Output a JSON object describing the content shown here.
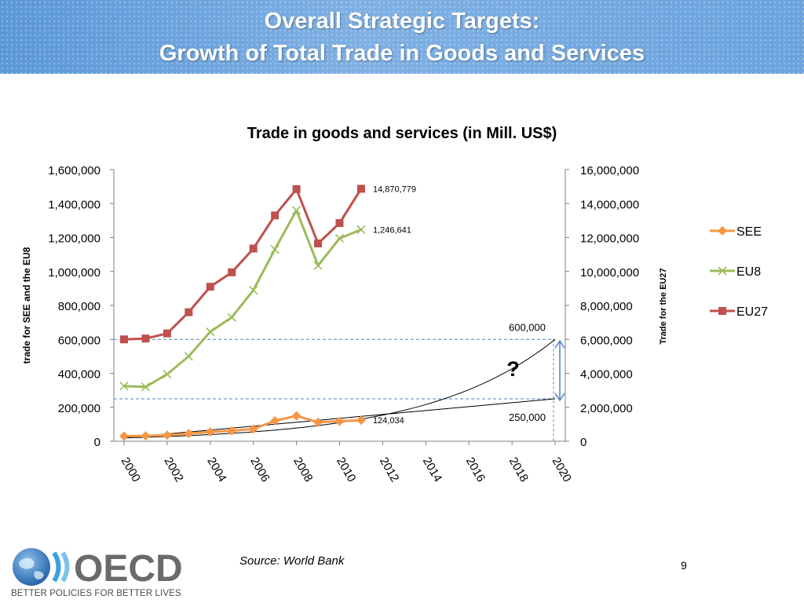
{
  "header": {
    "title_line1": "Overall Strategic Targets:",
    "title_line2": "Growth of Total Trade in Goods and Services"
  },
  "chart_data": {
    "type": "line",
    "title": "Trade in goods and services (in Mill. US$)",
    "ylabel_left": "trade for SEE and the EU8",
    "ylabel_right": "Trade for the EU27",
    "x_ticks": [
      "2000",
      "2002",
      "2004",
      "2006",
      "2008",
      "2010",
      "2012",
      "2014",
      "2016",
      "2018",
      "2020"
    ],
    "xlim": [
      2000,
      2020
    ],
    "ylim_left": [
      0,
      1600000
    ],
    "ylim_right": [
      0,
      16000000
    ],
    "y_ticks_left": [
      "0",
      "200,000",
      "400,000",
      "600,000",
      "800,000",
      "1,000,000",
      "1,200,000",
      "1,400,000",
      "1,600,000"
    ],
    "y_ticks_right": [
      "0",
      "2,000,000",
      "4,000,000",
      "6,000,000",
      "8,000,000",
      "10,000,000",
      "12,000,000",
      "14,000,000",
      "16,000,000"
    ],
    "legend_position": "right",
    "series": [
      {
        "name": "SEE",
        "axis": "left",
        "color": "#f79646",
        "marker": "diamond",
        "x": [
          2000,
          2001,
          2002,
          2003,
          2004,
          2005,
          2006,
          2007,
          2008,
          2009,
          2010,
          2011
        ],
        "y": [
          30000,
          32000,
          36000,
          45000,
          55000,
          62000,
          72000,
          120000,
          150000,
          112000,
          118000,
          124034
        ]
      },
      {
        "name": "EU8",
        "axis": "left",
        "color": "#9bbb59",
        "marker": "x",
        "x": [
          2000,
          2001,
          2002,
          2003,
          2004,
          2005,
          2006,
          2007,
          2008,
          2009,
          2010,
          2011
        ],
        "y": [
          325000,
          320000,
          395000,
          500000,
          645000,
          730000,
          890000,
          1130000,
          1360000,
          1035000,
          1195000,
          1246641
        ]
      },
      {
        "name": "EU27",
        "axis": "right",
        "color": "#c0504d",
        "marker": "square",
        "x": [
          2000,
          2001,
          2002,
          2003,
          2004,
          2005,
          2006,
          2007,
          2008,
          2009,
          2010,
          2011
        ],
        "y": [
          6000000,
          6050000,
          6350000,
          7600000,
          9100000,
          9950000,
          11350000,
          13300000,
          14850000,
          11650000,
          12850000,
          14870779
        ]
      }
    ],
    "projections": [
      {
        "kind": "exponential",
        "axis": "left",
        "x": [
          2000,
          2020
        ],
        "y": [
          20000,
          600000
        ]
      },
      {
        "kind": "linear",
        "axis": "left",
        "x": [
          2000,
          2020
        ],
        "y": [
          20000,
          250000
        ]
      }
    ],
    "reference_lines_left": [
      600000,
      250000
    ],
    "annotations": [
      {
        "text": "14,870,779",
        "x": 2011,
        "axis": "right",
        "y": 14870779
      },
      {
        "text": "1,246,641",
        "x": 2011,
        "axis": "left",
        "y": 1246641
      },
      {
        "text": "124,034",
        "x": 2011,
        "axis": "left",
        "y": 124034
      },
      {
        "text": "600,000",
        "x": 2020,
        "axis": "left",
        "y": 600000
      },
      {
        "text": "250,000",
        "x": 2020,
        "axis": "left",
        "y": 250000
      },
      {
        "text": "?",
        "x": 2019,
        "axis": "left",
        "y": 320000
      }
    ]
  },
  "footer": {
    "source": "Source: World Bank",
    "page_number": "9",
    "logo_text": "OECD",
    "tagline": "BETTER POLICIES FOR BETTER LIVES"
  }
}
